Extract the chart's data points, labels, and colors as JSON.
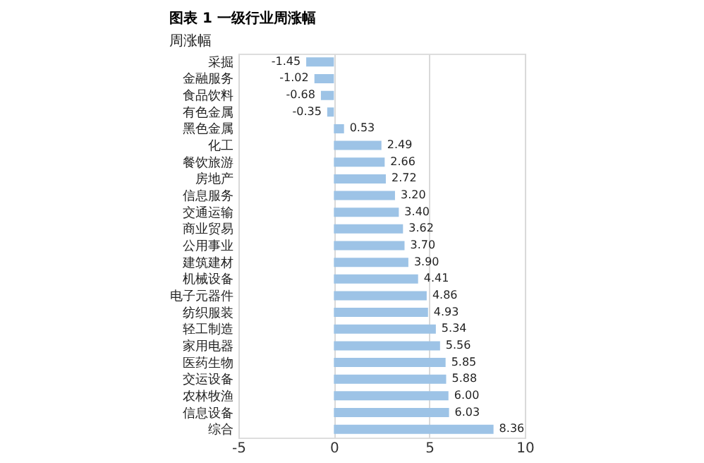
{
  "chart_data": {
    "type": "bar",
    "orientation": "horizontal",
    "title": "图表 1 一级行业周涨幅",
    "subtitle": "周涨幅",
    "categories": [
      "采掘",
      "金融服务",
      "食品饮料",
      "有色金属",
      "黑色金属",
      "化工",
      "餐饮旅游",
      "房地产",
      "信息服务",
      "交通运输",
      "商业贸易",
      "公用事业",
      "建筑建材",
      "机械设备",
      "电子元器件",
      "纺织服装",
      "轻工制造",
      "家用电器",
      "医药生物",
      "交运设备",
      "农林牧渔",
      "信息设备",
      "综合"
    ],
    "values": [
      -1.45,
      -1.02,
      -0.68,
      -0.35,
      0.53,
      2.49,
      2.66,
      2.72,
      3.2,
      3.4,
      3.62,
      3.7,
      3.9,
      4.41,
      4.86,
      4.93,
      5.34,
      5.56,
      5.85,
      5.88,
      6.0,
      6.03,
      8.36
    ],
    "value_labels": [
      "-1.45",
      "-1.02",
      "-0.68",
      "-0.35",
      "0.53",
      "2.49",
      "2.66",
      "2.72",
      "3.20",
      "3.40",
      "3.62",
      "3.70",
      "3.90",
      "4.41",
      "4.86",
      "4.93",
      "5.34",
      "5.56",
      "5.85",
      "5.88",
      "6.00",
      "6.03",
      "8.36"
    ],
    "color": "#9dc3e6",
    "xlim": [
      -5,
      10
    ],
    "xticks": [
      -5,
      0,
      5,
      10
    ],
    "grid": "x"
  }
}
